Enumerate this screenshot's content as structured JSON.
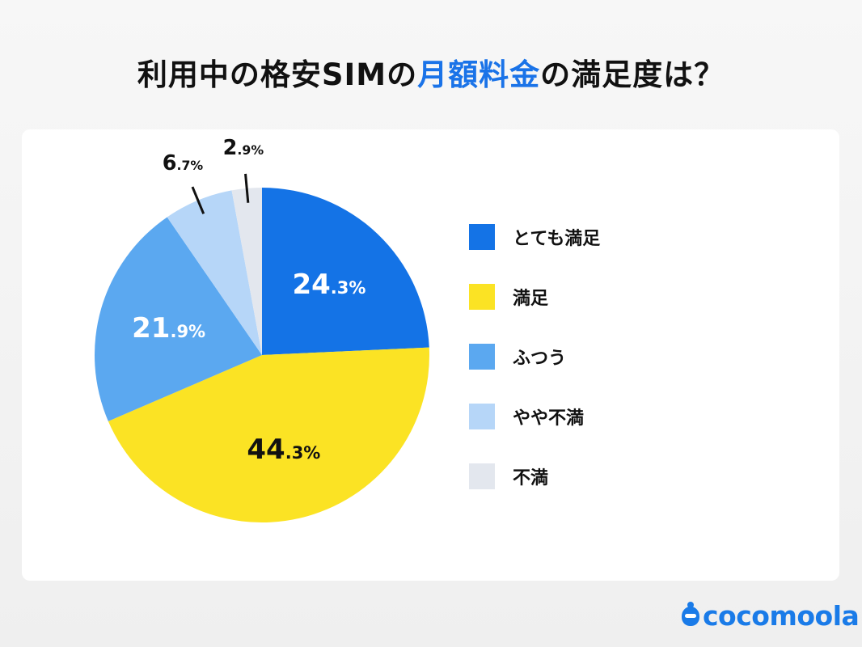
{
  "title": {
    "before": "利用中の格安SIMの",
    "highlight": "月額料金",
    "after": "の満足度は？"
  },
  "colors": {
    "highlight": "#1a73e8",
    "logo": "#1a7be8"
  },
  "chart_data": {
    "type": "pie",
    "start": "top",
    "direction": "clockwise",
    "legend_position": "right",
    "slices": [
      {
        "name": "とても満足",
        "value": 24.3,
        "int": "24",
        "dec": ".3%",
        "color": "#1473e6",
        "label_color": "#ffffff"
      },
      {
        "name": "満足",
        "value": 44.3,
        "int": "44",
        "dec": ".3%",
        "color": "#fbe324",
        "label_color": "#111111"
      },
      {
        "name": "ふつう",
        "value": 21.9,
        "int": "21",
        "dec": ".9%",
        "color": "#5ba8f0",
        "label_color": "#ffffff"
      },
      {
        "name": "やや不満",
        "value": 6.7,
        "int": "6",
        "dec": ".7%",
        "color": "#b6d6f8",
        "label_color": "#111111"
      },
      {
        "name": "不満",
        "value": 2.9,
        "int": "2",
        "dec": ".9%",
        "color": "#e3e7ee",
        "label_color": "#111111"
      }
    ]
  },
  "logo": {
    "text": "cocomoola"
  }
}
